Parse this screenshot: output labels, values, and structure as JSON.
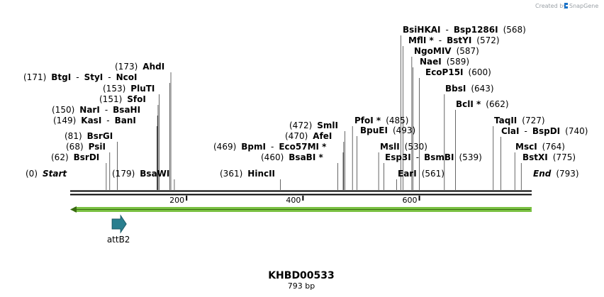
{
  "credit": {
    "prefix": "Created by",
    "brand": "SnapGene"
  },
  "title": "KHBD00533",
  "length_label": "793 bp",
  "seq_length": 793,
  "ticks": [
    {
      "pos": 200,
      "label": "200"
    },
    {
      "pos": 400,
      "label": "400"
    },
    {
      "pos": 600,
      "label": "600"
    }
  ],
  "features": [
    {
      "name": "attB2",
      "start": 71,
      "end": 95,
      "direction": "forward",
      "color": "#2a7f8f"
    }
  ],
  "green_arrow": {
    "start": 1,
    "end": 793,
    "direction": "reverse",
    "color": "#7ac143"
  },
  "sites": [
    {
      "pos": 0,
      "parts": [
        {
          "t": "(0)",
          "s": "num"
        },
        {
          "t": "Start",
          "s": "start"
        }
      ]
    },
    {
      "pos": 62,
      "parts": [
        {
          "t": "(62)",
          "s": "num"
        },
        {
          "t": "BsrDI",
          "s": "en"
        }
      ]
    },
    {
      "pos": 68,
      "parts": [
        {
          "t": "(68)",
          "s": "num"
        },
        {
          "t": "PsiI",
          "s": "en"
        }
      ]
    },
    {
      "pos": 81,
      "parts": [
        {
          "t": "(81)",
          "s": "num"
        },
        {
          "t": "BsrGI",
          "s": "en"
        }
      ]
    },
    {
      "pos": 149,
      "parts": [
        {
          "t": "(149)",
          "s": "num"
        },
        {
          "t": "KasI",
          "s": "en"
        },
        {
          "t": "-",
          "s": "num"
        },
        {
          "t": "BanI",
          "s": "en"
        }
      ]
    },
    {
      "pos": 150,
      "parts": [
        {
          "t": "(150)",
          "s": "num"
        },
        {
          "t": "NarI",
          "s": "en"
        },
        {
          "t": "-",
          "s": "num"
        },
        {
          "t": "BsaHI",
          "s": "en"
        }
      ]
    },
    {
      "pos": 151,
      "parts": [
        {
          "t": "(151)",
          "s": "num"
        },
        {
          "t": "SfoI",
          "s": "en"
        }
      ]
    },
    {
      "pos": 153,
      "parts": [
        {
          "t": "(153)",
          "s": "num"
        },
        {
          "t": "PluTI",
          "s": "en"
        }
      ]
    },
    {
      "pos": 171,
      "parts": [
        {
          "t": "(171)",
          "s": "num"
        },
        {
          "t": "BtgI",
          "s": "en"
        },
        {
          "t": "-",
          "s": "num"
        },
        {
          "t": "StyI",
          "s": "en"
        },
        {
          "t": "-",
          "s": "num"
        },
        {
          "t": "NcoI",
          "s": "en"
        }
      ]
    },
    {
      "pos": 173,
      "parts": [
        {
          "t": "(173)",
          "s": "num"
        },
        {
          "t": "AhdI",
          "s": "en"
        }
      ]
    },
    {
      "pos": 179,
      "parts": [
        {
          "t": "(179)",
          "s": "num"
        },
        {
          "t": "BsaWI",
          "s": "en"
        }
      ]
    },
    {
      "pos": 361,
      "parts": [
        {
          "t": "(361)",
          "s": "num"
        },
        {
          "t": "HincII",
          "s": "en"
        }
      ]
    },
    {
      "pos": 460,
      "parts": [
        {
          "t": "(460)",
          "s": "num"
        },
        {
          "t": "BsaBI *",
          "s": "en"
        }
      ]
    },
    {
      "pos": 469,
      "parts": [
        {
          "t": "(469)",
          "s": "num"
        },
        {
          "t": "BpmI",
          "s": "en"
        },
        {
          "t": "-",
          "s": "num"
        },
        {
          "t": "Eco57MI *",
          "s": "en"
        }
      ]
    },
    {
      "pos": 470,
      "parts": [
        {
          "t": "(470)",
          "s": "num"
        },
        {
          "t": "AfeI",
          "s": "en"
        }
      ]
    },
    {
      "pos": 472,
      "parts": [
        {
          "t": "(472)",
          "s": "num"
        },
        {
          "t": "SmlI",
          "s": "en"
        }
      ]
    },
    {
      "pos": 485,
      "parts": [
        {
          "t": "PfoI *",
          "s": "en"
        },
        {
          "t": "(485)",
          "s": "num"
        }
      ]
    },
    {
      "pos": 493,
      "parts": [
        {
          "t": "BpuEI",
          "s": "en"
        },
        {
          "t": "(493)",
          "s": "num"
        }
      ]
    },
    {
      "pos": 530,
      "parts": [
        {
          "t": "MslI",
          "s": "en"
        },
        {
          "t": "(530)",
          "s": "num"
        }
      ]
    },
    {
      "pos": 539,
      "parts": [
        {
          "t": "Esp3I",
          "s": "en"
        },
        {
          "t": "-",
          "s": "num"
        },
        {
          "t": "BsmBI",
          "s": "en"
        },
        {
          "t": "(539)",
          "s": "num"
        }
      ]
    },
    {
      "pos": 561,
      "parts": [
        {
          "t": "EarI",
          "s": "en"
        },
        {
          "t": "(561)",
          "s": "num"
        }
      ]
    },
    {
      "pos": 568,
      "parts": [
        {
          "t": "BsiHKAI",
          "s": "en"
        },
        {
          "t": "-",
          "s": "num"
        },
        {
          "t": "Bsp1286I",
          "s": "en"
        },
        {
          "t": "(568)",
          "s": "num"
        }
      ]
    },
    {
      "pos": 572,
      "parts": [
        {
          "t": "MflI *",
          "s": "en"
        },
        {
          "t": "-",
          "s": "num"
        },
        {
          "t": "BstYI",
          "s": "en"
        },
        {
          "t": "(572)",
          "s": "num"
        }
      ]
    },
    {
      "pos": 587,
      "parts": [
        {
          "t": "NgoMIV",
          "s": "en"
        },
        {
          "t": "(587)",
          "s": "num"
        }
      ]
    },
    {
      "pos": 589,
      "parts": [
        {
          "t": "NaeI",
          "s": "en"
        },
        {
          "t": "(589)",
          "s": "num"
        }
      ]
    },
    {
      "pos": 600,
      "parts": [
        {
          "t": "EcoP15I",
          "s": "en"
        },
        {
          "t": "(600)",
          "s": "num"
        }
      ]
    },
    {
      "pos": 643,
      "parts": [
        {
          "t": "BbsI",
          "s": "en"
        },
        {
          "t": "(643)",
          "s": "num"
        }
      ]
    },
    {
      "pos": 662,
      "parts": [
        {
          "t": "BclI *",
          "s": "en"
        },
        {
          "t": "(662)",
          "s": "num"
        }
      ]
    },
    {
      "pos": 727,
      "parts": [
        {
          "t": "TaqII",
          "s": "en"
        },
        {
          "t": "(727)",
          "s": "num"
        }
      ]
    },
    {
      "pos": 740,
      "parts": [
        {
          "t": "ClaI",
          "s": "en"
        },
        {
          "t": "-",
          "s": "num"
        },
        {
          "t": "BspDI",
          "s": "en"
        },
        {
          "t": "(740)",
          "s": "num"
        }
      ]
    },
    {
      "pos": 764,
      "parts": [
        {
          "t": "MscI",
          "s": "en"
        },
        {
          "t": "(764)",
          "s": "num"
        }
      ]
    },
    {
      "pos": 775,
      "parts": [
        {
          "t": "BstXI",
          "s": "en"
        },
        {
          "t": "(775)",
          "s": "num"
        }
      ]
    },
    {
      "pos": 793,
      "parts": [
        {
          "t": "End",
          "s": "start"
        },
        {
          "t": "(793)",
          "s": "num"
        }
      ]
    }
  ]
}
